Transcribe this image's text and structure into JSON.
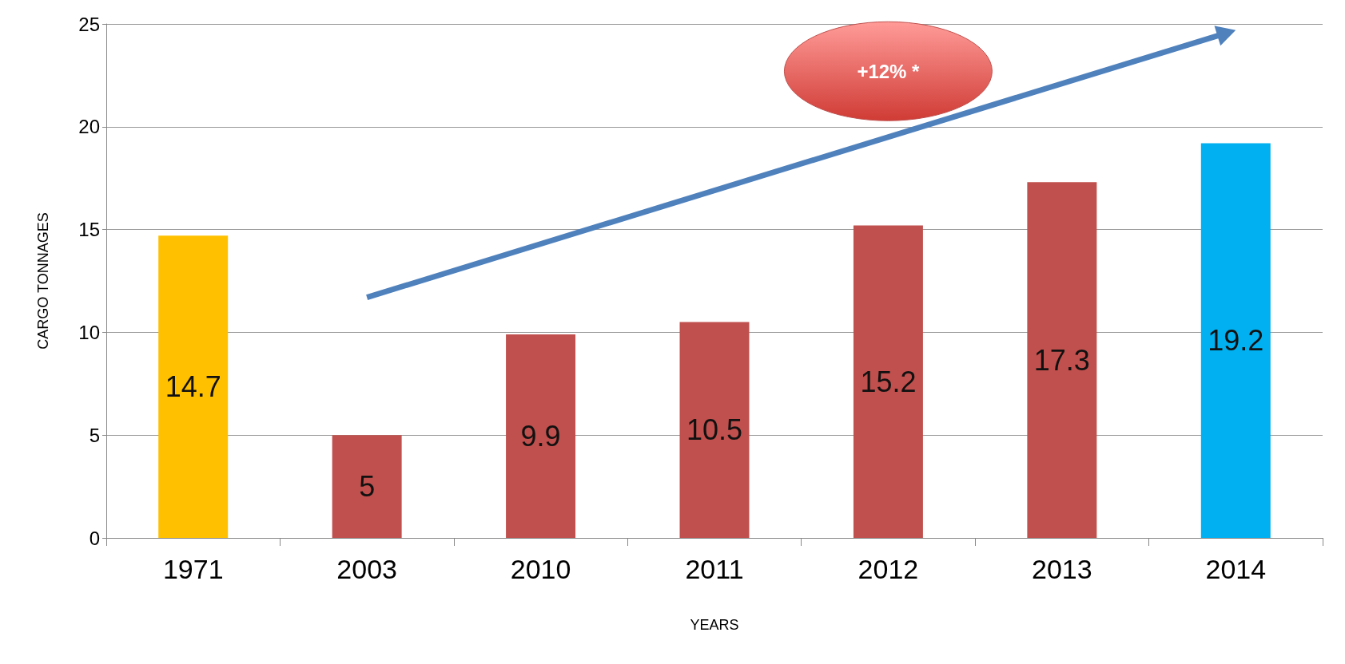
{
  "chart_data": {
    "type": "bar",
    "xlabel": "YEARS",
    "ylabel": "CARGO TONNAGES",
    "categories": [
      "1971",
      "2003",
      "2010",
      "2011",
      "2012",
      "2013",
      "2014"
    ],
    "values": [
      14.7,
      5,
      9.9,
      10.5,
      15.2,
      17.3,
      19.2
    ],
    "colors": [
      "#ffc000",
      "#c0504d",
      "#c0504d",
      "#c0504d",
      "#c0504d",
      "#c0504d",
      "#00b0f0"
    ],
    "ylim": [
      0,
      25
    ],
    "yticks": [
      0,
      5,
      10,
      15,
      20,
      25
    ],
    "grid": "y",
    "data_labels": true,
    "annotations": [
      "+12% *"
    ]
  }
}
